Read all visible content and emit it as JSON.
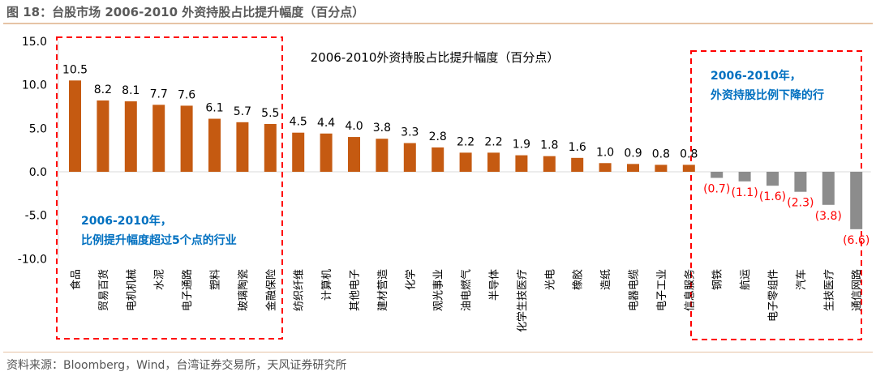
{
  "figure": {
    "title": "图 18：台股市场 2006-2010 外资持股占比提升幅度（百分点）",
    "source": "资料来源：Bloomberg，Wind，台湾证券交易所，天风证券研究所"
  },
  "chart_data": {
    "type": "bar",
    "title": "2006-2010外资持股占比提升幅度（百分点）",
    "categories": [
      "食品",
      "贸易百货",
      "电机机械",
      "水泥",
      "电子通路",
      "塑料",
      "玻璃陶瓷",
      "金融保险",
      "纺织纤维",
      "计算机",
      "其他电子",
      "建材营造",
      "化学",
      "观光事业",
      "油电燃气",
      "半导体",
      "化学生技医疗",
      "光电",
      "橡胶",
      "造纸",
      "电器电缆",
      "电子工业",
      "信息服务",
      "钢铁",
      "航运",
      "电子零组件",
      "汽车",
      "生技医疗",
      "通信网路"
    ],
    "values": [
      10.5,
      8.2,
      8.1,
      7.7,
      7.6,
      6.1,
      5.7,
      5.5,
      4.5,
      4.4,
      4.0,
      3.8,
      3.3,
      2.8,
      2.2,
      2.2,
      1.9,
      1.8,
      1.6,
      1.0,
      0.9,
      0.8,
      0.8,
      -0.7,
      -1.1,
      -1.6,
      -2.3,
      -3.8,
      -6.6
    ],
    "data_labels": [
      "10.5",
      "8.2",
      "8.1",
      "7.7",
      "7.6",
      "6.1",
      "5.7",
      "5.5",
      "4.5",
      "4.4",
      "4.0",
      "3.8",
      "3.3",
      "2.8",
      "2.2",
      "2.2",
      "1.9",
      "1.8",
      "1.6",
      "1.0",
      "0.9",
      "0.8",
      "0.8",
      "(0.7)",
      "(1.1)",
      "(1.6)",
      "(2.3)",
      "(3.8)",
      "(6.6)"
    ],
    "ylim": [
      -10,
      15
    ],
    "yticks": [
      "15.0",
      "10.0",
      "5.0",
      "0.0",
      "-5.0",
      "-10.0"
    ],
    "grid": false,
    "colors": {
      "positive": "#c55a11",
      "negative": "#8c8c8c",
      "negative_label": "#ff0000",
      "box": "#ff0000",
      "annotation": "#0070c0"
    },
    "annotations": {
      "left": [
        "2006-2010年，",
        "比例提升幅度超过5个点的行业"
      ],
      "right": [
        "2006-2010年，",
        "外资持股比例下降的行"
      ]
    }
  }
}
